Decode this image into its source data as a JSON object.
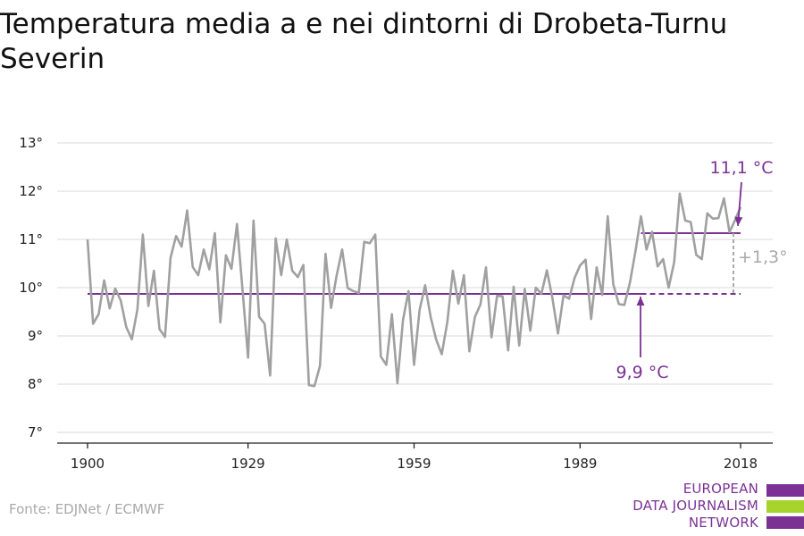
{
  "title": "Temperatura media a e nei dintorni di Drobeta-Turnu Severin",
  "source": "Fonte: EDJNet / ECMWF",
  "logo": {
    "lines": [
      "EUROPEAN",
      "DATA JOURNALISM",
      "NETWORK"
    ],
    "colors": [
      "#7b3294",
      "#a6d42c",
      "#7b3294"
    ]
  },
  "colors": {
    "series": "#a0a0a0",
    "accent": "#7b3294",
    "grid": "#d9d9d9",
    "diff": "#a9a9a9"
  },
  "chart_data": {
    "type": "line",
    "xlabel": "",
    "ylabel": "",
    "x_ticks": [
      "1900",
      "1929",
      "1959",
      "1989",
      "2018"
    ],
    "x_tick_values": [
      1900,
      1929,
      1959,
      1989,
      2018
    ],
    "y_ticks": [
      "7°",
      "8°",
      "9°",
      "10°",
      "11°",
      "12°",
      "13°"
    ],
    "y_tick_values": [
      7,
      8,
      9,
      10,
      11,
      12,
      13
    ],
    "xlim": [
      1900,
      2018
    ],
    "ylim": [
      7,
      13
    ],
    "grid": true,
    "series": [
      {
        "x": [
          1900,
          1901,
          1902,
          1903,
          1904,
          1905,
          1906,
          1907,
          1908,
          1909,
          1910,
          1911,
          1912,
          1913,
          1914,
          1915,
          1916,
          1917,
          1918,
          1919,
          1920,
          1921,
          1922,
          1923,
          1924,
          1925,
          1926,
          1927,
          1928,
          1929,
          1930,
          1931,
          1932,
          1933,
          1934,
          1935,
          1936,
          1937,
          1938,
          1939,
          1940,
          1941,
          1942,
          1943,
          1944,
          1945,
          1946,
          1947,
          1948,
          1949,
          1950,
          1951,
          1952,
          1953,
          1954,
          1955,
          1956,
          1957,
          1958,
          1959,
          1960,
          1961,
          1962,
          1963,
          1964,
          1965,
          1966,
          1967,
          1968,
          1969,
          1970,
          1971,
          1972,
          1973,
          1974,
          1975,
          1976,
          1977,
          1978,
          1979,
          1980,
          1981,
          1982,
          1983,
          1984,
          1985,
          1986,
          1987,
          1988,
          1989,
          1990,
          1991,
          1992,
          1993,
          1994,
          1995,
          1996,
          1997,
          1998,
          1999,
          2000,
          2001,
          2002,
          2003,
          2004,
          2005,
          2006,
          2007,
          2008,
          2009,
          2010,
          2011,
          2012,
          2013,
          2014,
          2015,
          2016,
          2017,
          2018
        ],
        "values": [
          11.0,
          9.25,
          9.45,
          10.15,
          9.57,
          9.98,
          9.73,
          9.18,
          8.93,
          9.55,
          11.1,
          9.62,
          10.35,
          9.14,
          8.98,
          10.62,
          11.07,
          10.85,
          11.6,
          10.43,
          10.26,
          10.79,
          10.38,
          11.13,
          9.28,
          10.67,
          10.39,
          11.32,
          9.95,
          8.55,
          11.39,
          9.4,
          9.25,
          8.18,
          11.02,
          10.26,
          11.0,
          10.35,
          10.22,
          10.47,
          7.98,
          7.96,
          8.38,
          10.7,
          9.58,
          10.25,
          10.79,
          9.99,
          9.93,
          9.89,
          10.95,
          10.92,
          11.1,
          8.57,
          8.4,
          9.45,
          8.02,
          9.33,
          9.93,
          8.4,
          9.54,
          10.05,
          9.39,
          8.92,
          8.62,
          9.28,
          10.35,
          9.67,
          10.26,
          8.68,
          9.39,
          9.65,
          10.42,
          8.97,
          9.83,
          9.82,
          8.7,
          10.02,
          8.8,
          9.97,
          9.11,
          10.0,
          9.87,
          10.36,
          9.78,
          9.05,
          9.84,
          9.77,
          10.2,
          10.46,
          10.58,
          9.35,
          10.42,
          9.85,
          11.48,
          10.07,
          9.66,
          9.64,
          10.1,
          10.75,
          11.48,
          10.79,
          11.16,
          10.44,
          10.59,
          10.0,
          10.53,
          11.95,
          11.39,
          11.36,
          10.68,
          10.59,
          11.54,
          11.43,
          11.44,
          11.85,
          11.15,
          11.4,
          11.67
        ]
      }
    ],
    "reference_lines": [
      {
        "label": "9,9 °C",
        "value": 9.87,
        "from": 1900,
        "to": 2018
      },
      {
        "label": "11,1 °C",
        "value": 11.13,
        "from": 2000,
        "to": 2018
      }
    ],
    "annotations": [
      {
        "label": "+1,3°",
        "type": "difference"
      }
    ]
  }
}
